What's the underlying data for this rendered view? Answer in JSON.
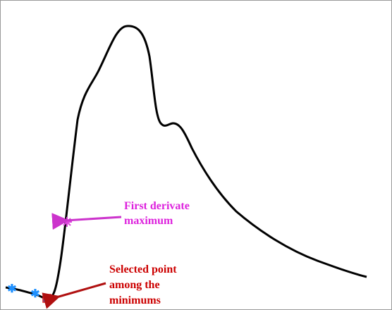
{
  "annotations": {
    "derivative": {
      "lines": [
        "First derivate",
        "maximum"
      ]
    },
    "selected": {
      "lines": [
        "Selected point",
        "among the",
        "minimums"
      ]
    }
  }
}
